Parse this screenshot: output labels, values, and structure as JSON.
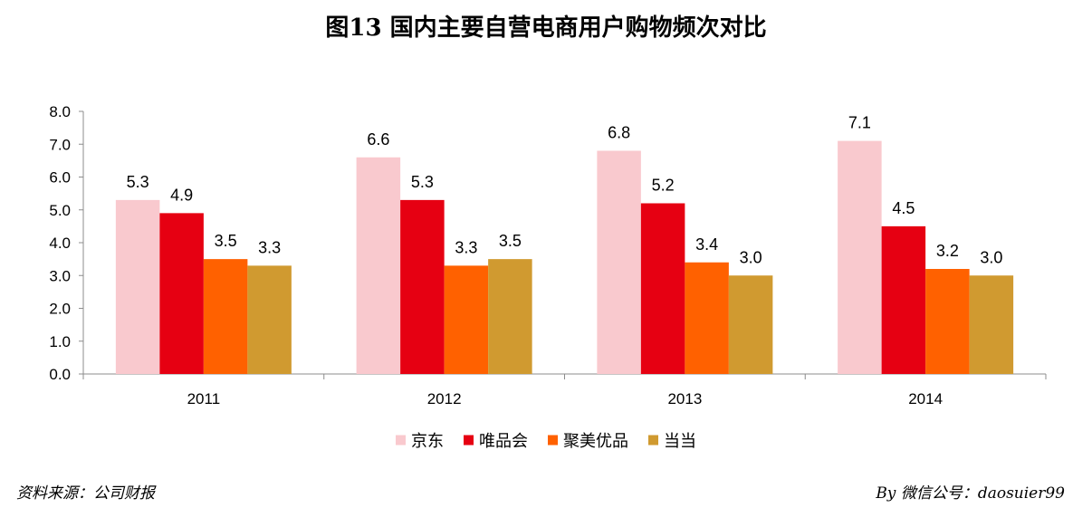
{
  "title": "图13 国内主要自营电商用户购物频次对比",
  "source": "资料来源：公司财报",
  "credit": "By 微信公号：daosuier99",
  "chart_data": {
    "type": "bar",
    "categories": [
      "2011",
      "2012",
      "2013",
      "2014"
    ],
    "series": [
      {
        "name": "京东",
        "values": [
          5.3,
          6.6,
          6.8,
          7.1
        ],
        "color": "#f9c9ce"
      },
      {
        "name": "唯品会",
        "values": [
          4.9,
          5.3,
          5.2,
          4.5
        ],
        "color": "#e60012"
      },
      {
        "name": "聚美优品",
        "values": [
          3.5,
          3.3,
          3.4,
          3.2
        ],
        "color": "#ff6100"
      },
      {
        "name": "当当",
        "values": [
          3.3,
          3.5,
          3.0,
          3.0
        ],
        "color": "#d09a30"
      }
    ],
    "ylim": [
      0,
      8
    ],
    "yticks": [
      "0.0",
      "1.0",
      "2.0",
      "3.0",
      "4.0",
      "5.0",
      "6.0",
      "7.0",
      "8.0"
    ],
    "grid": false,
    "legend": "bottom"
  }
}
